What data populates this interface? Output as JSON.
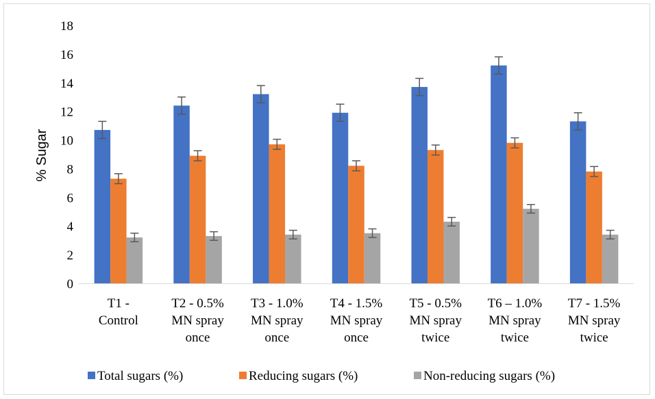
{
  "chart_data": {
    "type": "bar",
    "title": "",
    "xlabel": "",
    "ylabel": "% Sugar",
    "ylim": [
      0,
      18
    ],
    "yticks": [
      0,
      2,
      4,
      6,
      8,
      10,
      12,
      14,
      16,
      18
    ],
    "grid": false,
    "legend_position": "bottom",
    "categories": [
      [
        "T1 -",
        "Control"
      ],
      [
        "T2 - 0.5%",
        "MN spray",
        "once"
      ],
      [
        "T3 - 1.0%",
        "MN spray",
        "once"
      ],
      [
        "T4 - 1.5%",
        "MN spray",
        "once"
      ],
      [
        "T5 - 0.5%",
        "MN spray",
        "twice"
      ],
      [
        "T6 – 1.0%",
        "MN spray",
        "twice"
      ],
      [
        "T7 - 1.5%",
        "MN spray",
        "twice"
      ]
    ],
    "series": [
      {
        "name": "Total sugars (%)",
        "color": "#4472c4",
        "values": [
          10.7,
          12.4,
          13.2,
          11.9,
          13.7,
          15.2,
          11.3
        ],
        "error": [
          0.6,
          0.6,
          0.6,
          0.6,
          0.6,
          0.6,
          0.6
        ]
      },
      {
        "name": "Reducing sugars (%)",
        "color": "#ed7d31",
        "values": [
          7.3,
          8.9,
          9.7,
          8.2,
          9.3,
          9.8,
          7.8
        ],
        "error": [
          0.35,
          0.35,
          0.35,
          0.35,
          0.35,
          0.35,
          0.35
        ]
      },
      {
        "name": "Non-reducing sugars (%)",
        "color": "#a5a5a5",
        "values": [
          3.2,
          3.3,
          3.4,
          3.5,
          4.3,
          5.2,
          3.4
        ],
        "error": [
          0.3,
          0.3,
          0.3,
          0.3,
          0.3,
          0.3,
          0.3
        ]
      }
    ]
  }
}
